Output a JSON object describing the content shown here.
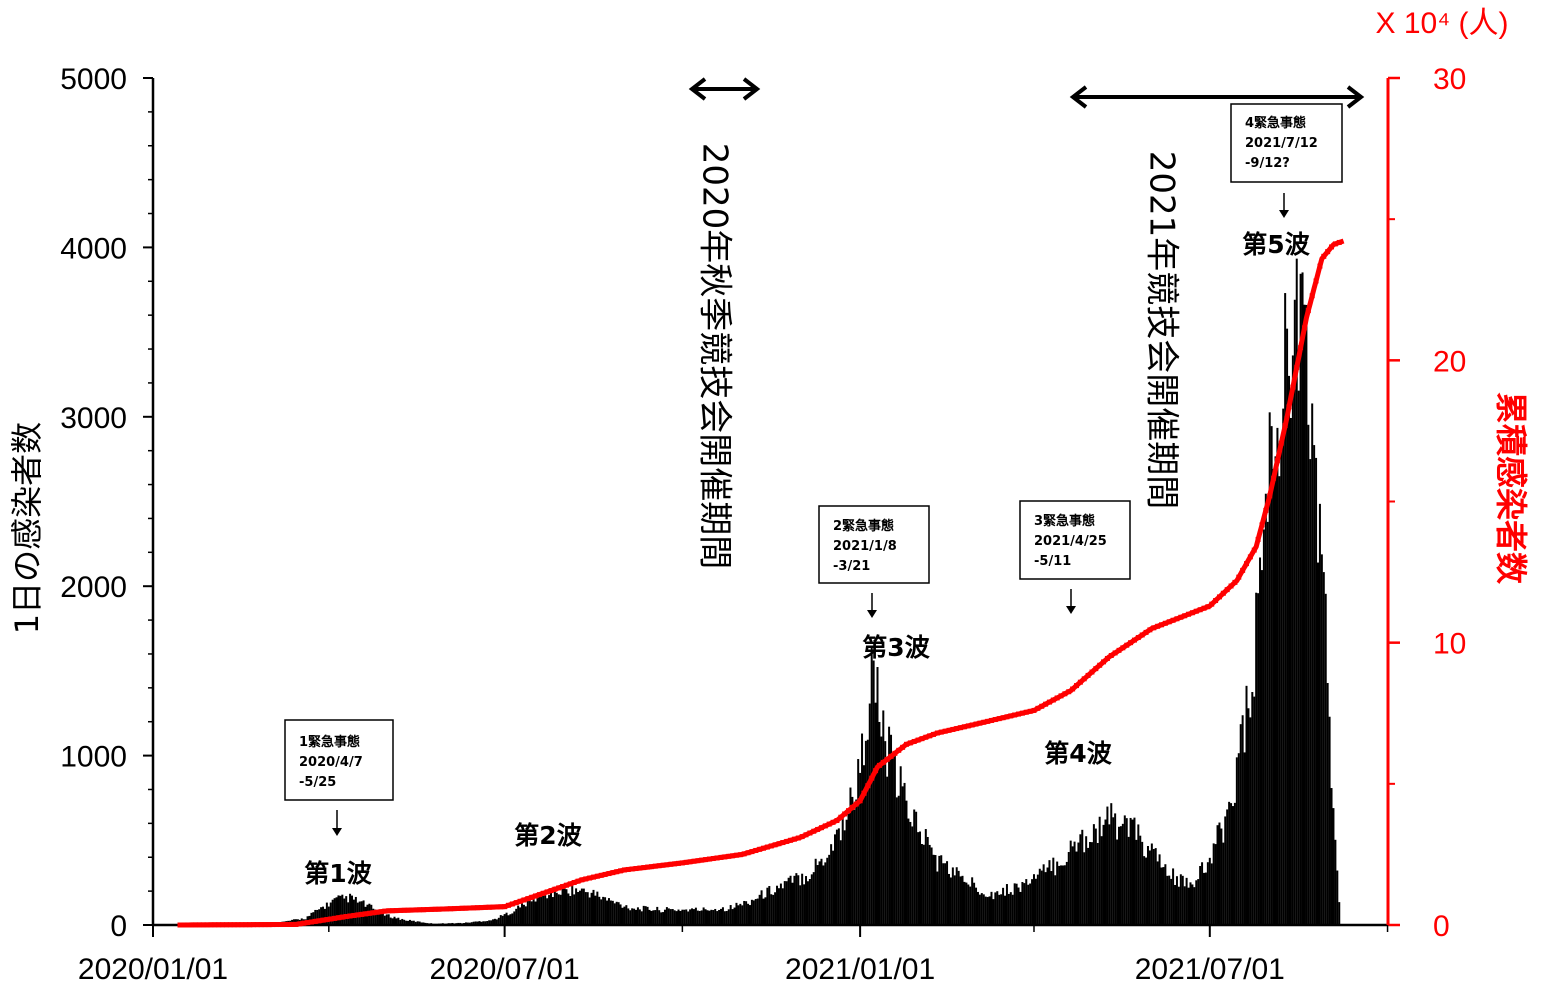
{
  "chart_data": {
    "type": "bar",
    "xaxis": {
      "start": "2020-01-01",
      "end": "2021-10-01",
      "tick_labels": [
        "2020/01/01",
        "2020/07/01",
        "2021/01/01",
        "2021/07/01"
      ]
    },
    "y_left": {
      "label": "1日の感染者数",
      "lim": [
        0,
        5000
      ],
      "ticks": [
        "0",
        "1000",
        "2000",
        "3000",
        "4000",
        "5000"
      ]
    },
    "y_right": {
      "label": "累積感染者数",
      "unit": "X 10⁴ (人)",
      "lim": [
        0,
        30
      ],
      "ticks": [
        "0",
        "10",
        "20",
        "30"
      ],
      "color": "#ff0000"
    },
    "series": [
      {
        "name": "1日の感染者数",
        "type": "bar",
        "color": "#000000",
        "points": [
          [
            "2020-01-15",
            0
          ],
          [
            "2020-03-01",
            5
          ],
          [
            "2020-03-20",
            40
          ],
          [
            "2020-03-28",
            100
          ],
          [
            "2020-04-05",
            150
          ],
          [
            "2020-04-12",
            160
          ],
          [
            "2020-04-20",
            120
          ],
          [
            "2020-04-30",
            60
          ],
          [
            "2020-05-10",
            30
          ],
          [
            "2020-05-25",
            8
          ],
          [
            "2020-06-10",
            12
          ],
          [
            "2020-06-25",
            30
          ],
          [
            "2020-07-05",
            80
          ],
          [
            "2020-07-15",
            150
          ],
          [
            "2020-07-25",
            190
          ],
          [
            "2020-08-05",
            210
          ],
          [
            "2020-08-15",
            190
          ],
          [
            "2020-08-25",
            140
          ],
          [
            "2020-09-05",
            100
          ],
          [
            "2020-09-20",
            90
          ],
          [
            "2020-10-10",
            90
          ],
          [
            "2020-10-25",
            100
          ],
          [
            "2020-11-05",
            140
          ],
          [
            "2020-11-15",
            200
          ],
          [
            "2020-11-25",
            250
          ],
          [
            "2020-12-05",
            300
          ],
          [
            "2020-12-15",
            420
          ],
          [
            "2020-12-25",
            650
          ],
          [
            "2021-01-01",
            900
          ],
          [
            "2021-01-05",
            1300
          ],
          [
            "2021-01-08",
            1500
          ],
          [
            "2021-01-12",
            1150
          ],
          [
            "2021-01-20",
            850
          ],
          [
            "2021-01-30",
            600
          ],
          [
            "2021-02-10",
            380
          ],
          [
            "2021-02-25",
            260
          ],
          [
            "2021-03-10",
            180
          ],
          [
            "2021-03-25",
            230
          ],
          [
            "2021-04-05",
            300
          ],
          [
            "2021-04-15",
            380
          ],
          [
            "2021-04-25",
            500
          ],
          [
            "2021-05-05",
            580
          ],
          [
            "2021-05-12",
            620
          ],
          [
            "2021-05-20",
            580
          ],
          [
            "2021-05-30",
            450
          ],
          [
            "2021-06-10",
            300
          ],
          [
            "2021-06-20",
            230
          ],
          [
            "2021-06-30",
            350
          ],
          [
            "2021-07-10",
            650
          ],
          [
            "2021-07-20",
            1200
          ],
          [
            "2021-07-25",
            1700
          ],
          [
            "2021-07-30",
            2500
          ],
          [
            "2021-08-05",
            3000
          ],
          [
            "2021-08-10",
            3300
          ],
          [
            "2021-08-13",
            3800
          ],
          [
            "2021-08-16",
            3500
          ],
          [
            "2021-08-20",
            3200
          ],
          [
            "2021-08-25",
            2700
          ],
          [
            "2021-08-30",
            1800
          ],
          [
            "2021-09-03",
            600
          ],
          [
            "2021-09-07",
            0
          ]
        ]
      },
      {
        "name": "累積感染者数",
        "type": "line",
        "color": "#ff0000",
        "points": [
          [
            "2020-01-15",
            0
          ],
          [
            "2020-03-15",
            0.02
          ],
          [
            "2020-04-10",
            0.3
          ],
          [
            "2020-05-01",
            0.5
          ],
          [
            "2020-06-01",
            0.57
          ],
          [
            "2020-07-01",
            0.65
          ],
          [
            "2020-07-20",
            1.1
          ],
          [
            "2020-08-10",
            1.6
          ],
          [
            "2020-09-01",
            1.95
          ],
          [
            "2020-10-01",
            2.2
          ],
          [
            "2020-11-01",
            2.5
          ],
          [
            "2020-12-01",
            3.1
          ],
          [
            "2020-12-20",
            3.7
          ],
          [
            "2021-01-01",
            4.4
          ],
          [
            "2021-01-10",
            5.6
          ],
          [
            "2021-01-25",
            6.4
          ],
          [
            "2021-02-10",
            6.8
          ],
          [
            "2021-03-01",
            7.1
          ],
          [
            "2021-04-01",
            7.6
          ],
          [
            "2021-04-20",
            8.3
          ],
          [
            "2021-05-10",
            9.5
          ],
          [
            "2021-06-01",
            10.5
          ],
          [
            "2021-07-01",
            11.3
          ],
          [
            "2021-07-15",
            12.2
          ],
          [
            "2021-07-25",
            13.4
          ],
          [
            "2021-08-01",
            15.2
          ],
          [
            "2021-08-10",
            18.0
          ],
          [
            "2021-08-20",
            21.5
          ],
          [
            "2021-08-28",
            23.6
          ],
          [
            "2021-09-03",
            24.1
          ],
          [
            "2021-09-07",
            24.2
          ]
        ]
      }
    ],
    "annotations": {
      "periods": [
        {
          "label": "2020年秋季競技会開催期間",
          "start": "2020-09-28",
          "end": "2020-10-31"
        },
        {
          "label": "2021年競技会開催期間",
          "start": "2021-04-15",
          "end": "2021-09-15"
        }
      ],
      "waves": [
        "第1波",
        "第2波",
        "第3波",
        "第4波",
        "第5波"
      ],
      "emergencies": [
        {
          "lines": [
            "1緊急事態",
            "2020/4/7",
            "-5/25"
          ]
        },
        {
          "lines": [
            "2緊急事態",
            "2021/1/8",
            "-3/21"
          ]
        },
        {
          "lines": [
            "3緊急事態",
            "2021/4/25",
            "-5/11"
          ]
        },
        {
          "lines": [
            "4緊急事態",
            "2021/7/12",
            "-9/12?"
          ]
        }
      ]
    }
  }
}
